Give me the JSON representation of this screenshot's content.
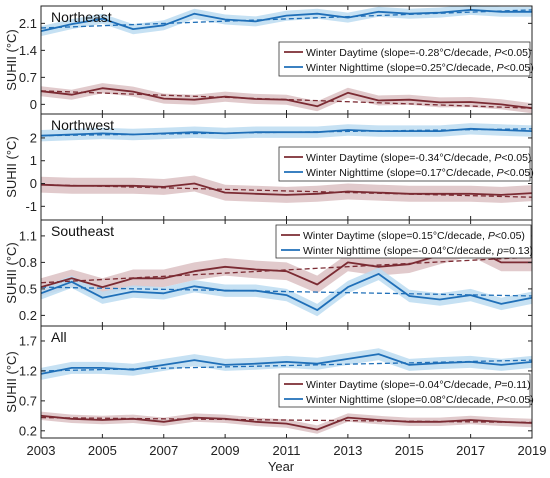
{
  "chart_data": {
    "type": "line",
    "xlabel": "Year",
    "x": [
      2003,
      2004,
      2005,
      2006,
      2007,
      2008,
      2009,
      2010,
      2011,
      2012,
      2013,
      2014,
      2015,
      2016,
      2017,
      2018,
      2019
    ],
    "xticks": [
      2003,
      2005,
      2007,
      2009,
      2011,
      2013,
      2015,
      2017,
      2019
    ],
    "xlim": [
      2003,
      2019
    ],
    "colors": {
      "daytime": "#7b2b33",
      "nighttime": "#1f6fb8",
      "daytime_band": "#dcc1c3",
      "nighttime_band": "#bcdcf1"
    },
    "panels": [
      {
        "title": "Northeast",
        "ylabel": "SUHII (°C)",
        "ylim": [
          -0.25,
          2.55
        ],
        "yticks": [
          "0",
          "0.7",
          "1.4",
          "2.1"
        ],
        "ytick_values": [
          0,
          0.7,
          1.4,
          2.1
        ],
        "legend": {
          "position": "right",
          "entries": [
            {
              "name": "Winter Daytime",
              "stat_pre": "(slope=-0.28°C/decade, ",
              "p_label": "P",
              "stat_post": "<0.05)"
            },
            {
              "name": "Winter Nighttime",
              "stat_pre": "(slope=0.25°C/decade, ",
              "p_label": "P",
              "stat_post": "<0.05)"
            }
          ]
        },
        "series": [
          {
            "name": "Winter Daytime",
            "values": [
              0.34,
              0.25,
              0.42,
              0.33,
              0.15,
              0.12,
              0.2,
              0.14,
              0.12,
              -0.05,
              0.3,
              0.1,
              0.12,
              0.05,
              0.06,
              0.0,
              -0.1
            ],
            "band": 0.13,
            "trend": [
              0.35,
              -0.1
            ]
          },
          {
            "name": "Winter Nighttime",
            "values": [
              1.9,
              2.08,
              2.22,
              1.95,
              2.05,
              2.35,
              2.2,
              2.15,
              2.3,
              2.35,
              2.25,
              2.4,
              2.35,
              2.38,
              2.45,
              2.4,
              2.4
            ],
            "band": 0.13,
            "trend": [
              1.98,
              2.45
            ]
          }
        ]
      },
      {
        "title": "Northwest",
        "ylabel": "SUHII (°C)",
        "ylim": [
          -1.6,
          3.05
        ],
        "yticks": [
          "-1",
          "0",
          "1",
          "2"
        ],
        "ytick_values": [
          -1,
          0,
          1,
          2
        ],
        "legend": {
          "position": "right",
          "entries": [
            {
              "name": "Winter Daytime",
              "stat_pre": "(slope=-0.34°C/decade, ",
              "p_label": "P",
              "stat_post": "<0.05)"
            },
            {
              "name": "Winter Nighttime",
              "stat_pre": "(slope=0.17°C/decade, ",
              "p_label": "P",
              "stat_post": "<0.05)"
            }
          ]
        },
        "series": [
          {
            "name": "Winter Daytime",
            "values": [
              -0.05,
              -0.1,
              -0.1,
              -0.1,
              -0.15,
              0.0,
              -0.4,
              -0.45,
              -0.5,
              -0.45,
              -0.35,
              -0.4,
              -0.45,
              -0.45,
              -0.45,
              -0.5,
              -0.42
            ],
            "band": 0.35,
            "trend": [
              -0.05,
              -0.6
            ]
          },
          {
            "name": "Winter Nighttime",
            "values": [
              2.1,
              2.15,
              2.2,
              2.15,
              2.2,
              2.25,
              2.2,
              2.25,
              2.25,
              2.25,
              2.35,
              2.3,
              2.3,
              2.3,
              2.4,
              2.35,
              2.3
            ],
            "band": 0.25,
            "trend": [
              2.1,
              2.4
            ]
          }
        ]
      },
      {
        "title": "Southeast",
        "ylabel": "SUHII (°C)",
        "ylim": [
          0.08,
          1.28
        ],
        "yticks": [
          "0.2",
          "0.5",
          "0.8",
          "1.1"
        ],
        "ytick_values": [
          0.2,
          0.5,
          0.8,
          1.1
        ],
        "legend": {
          "position": "top-right",
          "entries": [
            {
              "name": "Winter Daytime",
              "stat_pre": "(slope=0.15°C/decade, ",
              "p_label": "P",
              "stat_post": "<0.05)"
            },
            {
              "name": "Winter Nighttime",
              "stat_pre": "(slope=-0.04°C/decade, ",
              "p_label": "p",
              "stat_post": "=0.13)"
            }
          ]
        },
        "series": [
          {
            "name": "Winter Daytime",
            "values": [
              0.52,
              0.62,
              0.52,
              0.62,
              0.62,
              0.7,
              0.75,
              0.72,
              0.7,
              0.55,
              0.8,
              0.75,
              0.78,
              0.88,
              0.97,
              0.8,
              0.8
            ],
            "band": 0.1,
            "trend": [
              0.57,
              0.86
            ]
          },
          {
            "name": "Winter Nighttime",
            "values": [
              0.45,
              0.58,
              0.4,
              0.47,
              0.45,
              0.53,
              0.48,
              0.48,
              0.43,
              0.26,
              0.52,
              0.67,
              0.42,
              0.38,
              0.43,
              0.33,
              0.4
            ],
            "band": 0.07,
            "trend": [
              0.52,
              0.42
            ]
          }
        ]
      },
      {
        "title": "All",
        "ylabel": "SUHII (°C)",
        "ylim": [
          0.08,
          1.95
        ],
        "yticks": [
          "0.2",
          "0.7",
          "1.2",
          "1.7"
        ],
        "ytick_values": [
          0.2,
          0.7,
          1.2,
          1.7
        ],
        "legend": {
          "position": "right",
          "entries": [
            {
              "name": "Winter Daytime",
              "stat_pre": "(slope=-0.04°C/decade, ",
              "p_label": "P",
              "stat_post": "=0.11)"
            },
            {
              "name": "Winter Nighttime",
              "stat_pre": "(slope=0.08°C/decade, ",
              "p_label": "P",
              "stat_post": "<0.05)"
            }
          ]
        },
        "series": [
          {
            "name": "Winter Daytime",
            "values": [
              0.45,
              0.4,
              0.38,
              0.4,
              0.35,
              0.42,
              0.4,
              0.35,
              0.32,
              0.22,
              0.42,
              0.38,
              0.35,
              0.35,
              0.38,
              0.35,
              0.33
            ],
            "band": 0.07,
            "trend": [
              0.42,
              0.34
            ]
          },
          {
            "name": "Winter Nighttime",
            "values": [
              1.15,
              1.25,
              1.25,
              1.22,
              1.3,
              1.38,
              1.3,
              1.32,
              1.35,
              1.32,
              1.4,
              1.48,
              1.3,
              1.33,
              1.35,
              1.3,
              1.35
            ],
            "band": 0.1,
            "trend": [
              1.2,
              1.38
            ]
          }
        ]
      }
    ]
  }
}
